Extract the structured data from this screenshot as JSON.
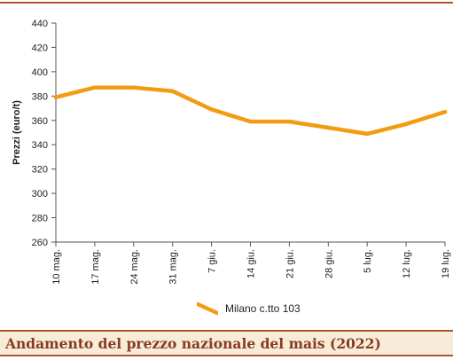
{
  "chart_data": {
    "type": "line",
    "title": "",
    "xlabel": "",
    "ylabel": "Prezzi (euro/t)",
    "ylim": [
      260,
      440
    ],
    "yticks": [
      260,
      280,
      300,
      320,
      340,
      360,
      380,
      400,
      420,
      440
    ],
    "categories": [
      "10 mag.",
      "17 mag.",
      "24 mag.",
      "31 mag.",
      "7 giu.",
      "14 giu.",
      "21 giu.",
      "28 giu.",
      "5 lug.",
      "12 lug.",
      "19 lug."
    ],
    "series": [
      {
        "name": "Milano  c.tto 103",
        "color": "#f39c12",
        "values": [
          379,
          387,
          387,
          384,
          369,
          359,
          359,
          354,
          349,
          357,
          367
        ]
      }
    ],
    "grid": false,
    "legend": "bottom-center"
  },
  "legend": {
    "label": "Milano  c.tto 103"
  },
  "caption": {
    "text": "Andamento del prezzo nazionale del mais (2022)"
  }
}
